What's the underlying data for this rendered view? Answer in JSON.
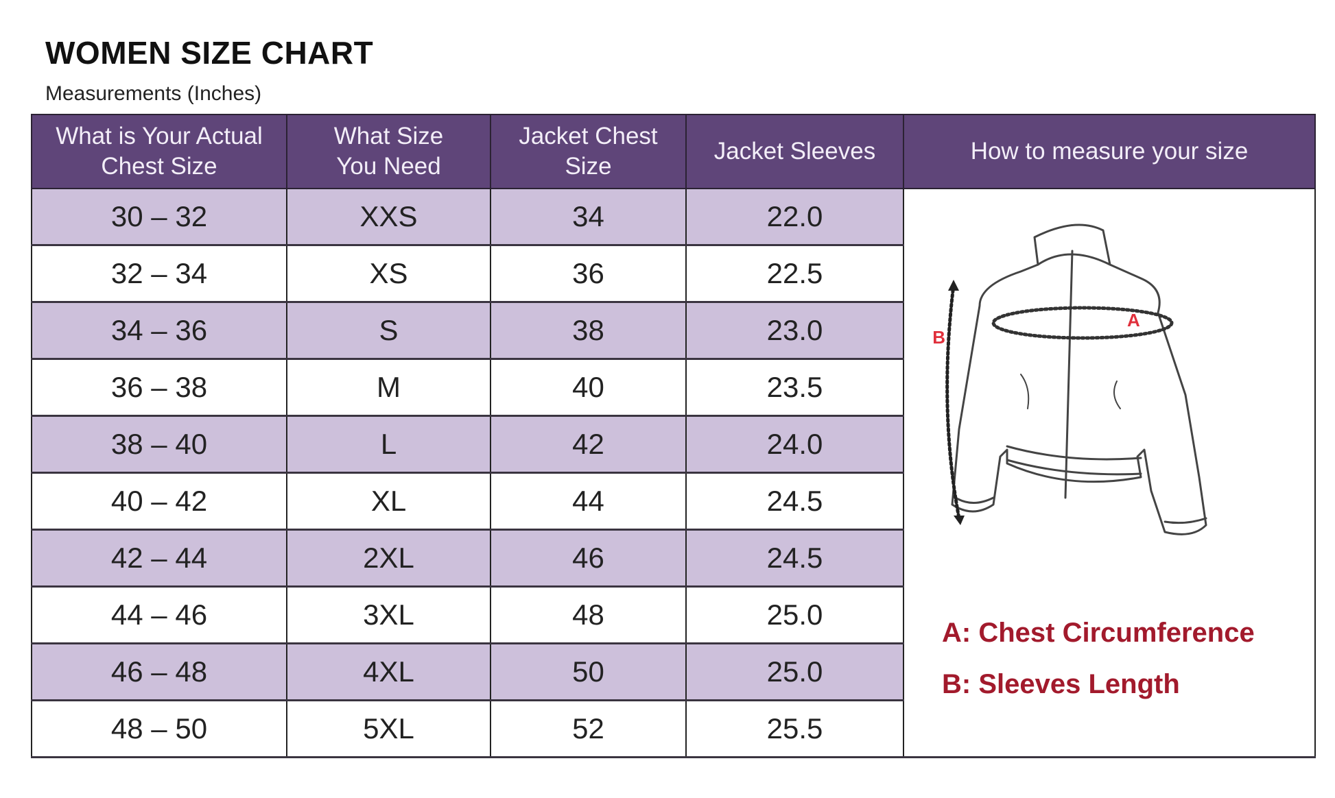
{
  "title": "WOMEN SIZE CHART",
  "subtitle": "Measurements (Inches)",
  "colors": {
    "header_bg": "#5f4579",
    "alt_row_bg": "#cdc0db",
    "legend_text": "#a21a2c"
  },
  "columns": [
    "What is Your Actual Chest Size",
    "What Size You Need",
    "Jacket Chest Size",
    "Jacket Sleeves",
    "How to measure your size"
  ],
  "rows": [
    {
      "chest": "30 – 32",
      "size": "XXS",
      "jacket_chest": "34",
      "sleeves": "22.0"
    },
    {
      "chest": "32 – 34",
      "size": "XS",
      "jacket_chest": "36",
      "sleeves": "22.5"
    },
    {
      "chest": "34 – 36",
      "size": "S",
      "jacket_chest": "38",
      "sleeves": "23.0"
    },
    {
      "chest": "36 – 38",
      "size": "M",
      "jacket_chest": "40",
      "sleeves": "23.5"
    },
    {
      "chest": "38 – 40",
      "size": "L",
      "jacket_chest": "42",
      "sleeves": "24.0"
    },
    {
      "chest": "40 – 42",
      "size": "XL",
      "jacket_chest": "44",
      "sleeves": "24.5"
    },
    {
      "chest": "42 – 44",
      "size": "2XL",
      "jacket_chest": "46",
      "sleeves": "24.5"
    },
    {
      "chest": "44 – 46",
      "size": "3XL",
      "jacket_chest": "48",
      "sleeves": "25.0"
    },
    {
      "chest": "46 – 48",
      "size": "4XL",
      "jacket_chest": "50",
      "sleeves": "25.0"
    },
    {
      "chest": "48 – 50",
      "size": "5XL",
      "jacket_chest": "52",
      "sleeves": "25.5"
    }
  ],
  "illustration": {
    "label_a": "A",
    "label_b": "B",
    "icon": "jacket-illustration"
  },
  "legend": [
    "A: Chest Circumference",
    "B: Sleeves Length"
  ]
}
